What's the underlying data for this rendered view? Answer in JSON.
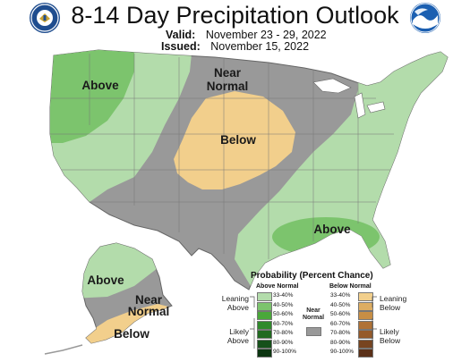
{
  "header": {
    "title": "8-14 Day Precipitation Outlook",
    "valid_label": "Valid:",
    "valid_dates": "November 23 - 29, 2022",
    "issued_label": "Issued:",
    "issued_date": "November 15, 2022",
    "noaa_logo_text": "NOAA"
  },
  "map": {
    "labels": {
      "above_nw": "Above",
      "near_normal_1": "Near",
      "near_normal_2": "Normal",
      "below_center": "Below",
      "above_se": "Above",
      "above_ak": "Above",
      "near_ak_1": "Near",
      "near_ak_2": "Normal",
      "below_ak": "Below"
    },
    "colors": {
      "light_green": "#b3dcab",
      "mid_green": "#7cc46d",
      "tan": "#f2cf8c",
      "gray": "#999999",
      "land_white": "#ffffff",
      "border": "#777777"
    }
  },
  "legend": {
    "title": "Probability (Percent Chance)",
    "above_header": "Above Normal",
    "below_header": "Below Normal",
    "leaning_above": "Leaning Above",
    "likely_above": "Likely Above",
    "near_normal": "Near Normal",
    "leaning_below": "Leaning Below",
    "likely_below": "Likely Below",
    "above_ranges": [
      "33-40%",
      "40-50%",
      "50-60%",
      "60-70%",
      "70-80%",
      "80-90%",
      "90-100%"
    ],
    "below_ranges": [
      "33-40%",
      "40-50%",
      "50-60%",
      "60-70%",
      "70-80%",
      "80-90%",
      "90-100%"
    ],
    "above_colors": [
      "#b3dcab",
      "#7cc46d",
      "#4aa83a",
      "#2f8a2b",
      "#216a20",
      "#16501a",
      "#0b3510"
    ],
    "below_colors": [
      "#f2cf8c",
      "#ddad62",
      "#c78e45",
      "#b07236",
      "#955a2a",
      "#774420",
      "#5a3018"
    ],
    "near_color": "#999999"
  }
}
